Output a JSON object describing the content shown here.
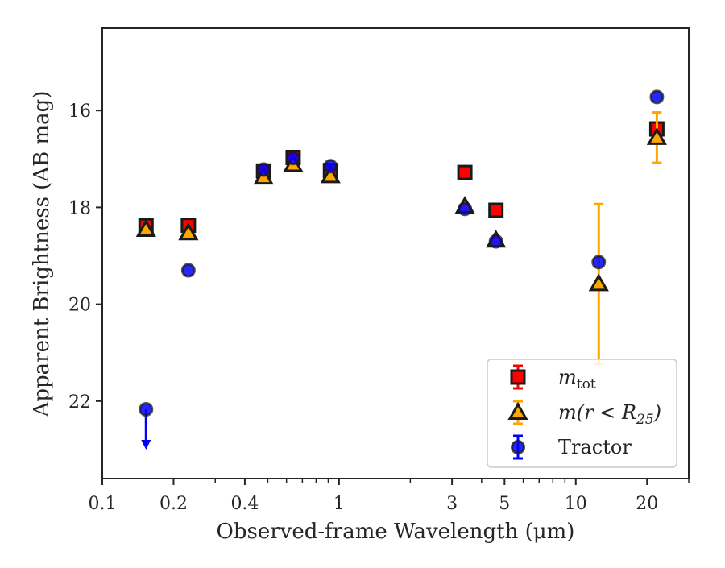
{
  "chart_data": {
    "type": "scatter",
    "x_scale": "log",
    "y_inverted": true,
    "xlabel": "Observed-frame Wavelength (μm)",
    "ylabel": "Apparent Brightness (AB mag)",
    "xlim": [
      0.1,
      30
    ],
    "ylim": [
      23.6,
      14.3
    ],
    "x_ticks": [
      {
        "value": 0.1,
        "label": "0.1"
      },
      {
        "value": 0.2,
        "label": "0.2"
      },
      {
        "value": 0.4,
        "label": "0.4"
      },
      {
        "value": 1,
        "label": "1"
      },
      {
        "value": 3,
        "label": "3"
      },
      {
        "value": 5,
        "label": "5"
      },
      {
        "value": 10,
        "label": "10"
      },
      {
        "value": 20,
        "label": "20"
      }
    ],
    "y_ticks": [
      {
        "value": 16,
        "label": "16"
      },
      {
        "value": 18,
        "label": "18"
      },
      {
        "value": 20,
        "label": "20"
      },
      {
        "value": 22,
        "label": "22"
      }
    ],
    "grid": false,
    "legend_position": "lower-right",
    "series": [
      {
        "name": "m_tot",
        "legend_label": "m",
        "legend_subscript": "tot",
        "marker": "square",
        "color": "#ff0000",
        "errorbar_color": "#ff0000",
        "points": [
          {
            "x": 0.153,
            "y": 18.38
          },
          {
            "x": 0.231,
            "y": 18.37
          },
          {
            "x": 0.48,
            "y": 17.25
          },
          {
            "x": 0.64,
            "y": 16.97
          },
          {
            "x": 0.92,
            "y": 17.24
          },
          {
            "x": 3.4,
            "y": 17.28
          },
          {
            "x": 4.6,
            "y": 18.06
          },
          {
            "x": 22.0,
            "y": 16.38
          }
        ]
      },
      {
        "name": "m(r < R25)",
        "legend_label": "m(r < R",
        "legend_subscript": "25",
        "legend_suffix": ")",
        "marker": "triangle",
        "color": "#ffa500",
        "errorbar_color": "#ffa500",
        "points": [
          {
            "x": 0.153,
            "y": 18.46
          },
          {
            "x": 0.231,
            "y": 18.53
          },
          {
            "x": 0.48,
            "y": 17.38
          },
          {
            "x": 0.64,
            "y": 17.12
          },
          {
            "x": 0.92,
            "y": 17.35
          },
          {
            "x": 3.4,
            "y": 17.98
          },
          {
            "x": 4.6,
            "y": 18.68
          },
          {
            "x": 12.5,
            "y": 19.58,
            "yerr": [
              1.65,
              1.65
            ]
          },
          {
            "x": 22.0,
            "y": 16.56,
            "yerr": [
              0.52,
              0.52
            ]
          }
        ]
      },
      {
        "name": "Tractor",
        "legend_label": "Tractor",
        "marker": "circle",
        "color": "#0000ff",
        "errorbar_color": "#0000ff",
        "points": [
          {
            "x": 0.153,
            "y": 22.17,
            "upper_limit": true
          },
          {
            "x": 0.231,
            "y": 19.3
          },
          {
            "x": 0.48,
            "y": 17.22
          },
          {
            "x": 0.64,
            "y": 16.98
          },
          {
            "x": 0.92,
            "y": 17.15
          },
          {
            "x": 3.4,
            "y": 18.03
          },
          {
            "x": 4.6,
            "y": 18.7
          },
          {
            "x": 12.5,
            "y": 19.13
          },
          {
            "x": 22.0,
            "y": 15.72
          }
        ]
      }
    ]
  }
}
